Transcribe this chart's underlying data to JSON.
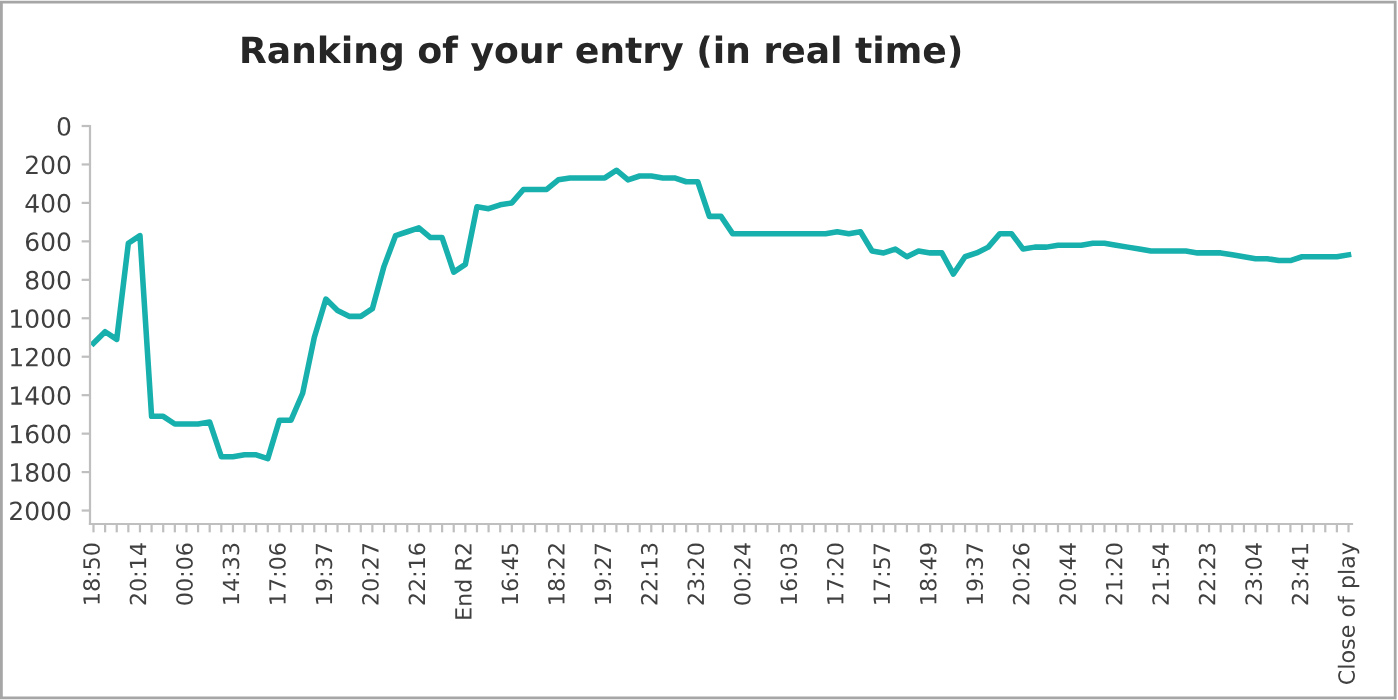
{
  "chart_data": {
    "type": "line",
    "title": "Ranking of your entry (in real time)",
    "categories": [
      "18:50",
      null,
      null,
      null,
      "20:14",
      null,
      null,
      null,
      "00:06",
      null,
      null,
      null,
      "14:33",
      null,
      null,
      null,
      "17:06",
      null,
      null,
      null,
      "19:37",
      null,
      null,
      null,
      "20:27",
      null,
      null,
      null,
      "22:16",
      null,
      null,
      null,
      "End R2",
      null,
      null,
      null,
      "16:45",
      null,
      null,
      null,
      "18:22",
      null,
      null,
      null,
      "19:27",
      null,
      null,
      null,
      "22:13",
      null,
      null,
      null,
      "23:20",
      null,
      null,
      null,
      "00:24",
      null,
      null,
      null,
      "16:03",
      null,
      null,
      null,
      "17:20",
      null,
      null,
      null,
      "17:57",
      null,
      null,
      null,
      "18:49",
      null,
      null,
      null,
      "19:37",
      null,
      null,
      null,
      "20:26",
      null,
      null,
      null,
      "20:44",
      null,
      null,
      null,
      "21:20",
      null,
      null,
      null,
      "21:54",
      null,
      null,
      null,
      "22:23",
      null,
      null,
      null,
      "23:04",
      null,
      null,
      null,
      "23:41",
      null,
      null,
      null,
      "Close of play"
    ],
    "series": [
      {
        "color": "#17b0ad",
        "values": [
          1130,
          1070,
          1110,
          610,
          570,
          1510,
          1510,
          1550,
          1550,
          1550,
          1540,
          1720,
          1720,
          1710,
          1710,
          1730,
          1530,
          1530,
          1390,
          1100,
          900,
          960,
          990,
          990,
          950,
          730,
          570,
          550,
          530,
          580,
          580,
          760,
          720,
          420,
          430,
          410,
          400,
          330,
          330,
          330,
          280,
          270,
          270,
          270,
          270,
          230,
          280,
          260,
          260,
          270,
          270,
          290,
          290,
          470,
          470,
          560,
          560,
          560,
          560,
          560,
          560,
          560,
          560,
          560,
          550,
          560,
          550,
          650,
          660,
          640,
          680,
          650,
          660,
          660,
          770,
          680,
          660,
          630,
          560,
          560,
          640,
          630,
          630,
          620,
          620,
          620,
          610,
          610,
          620,
          630,
          640,
          650,
          650,
          650,
          650,
          660,
          660,
          660,
          670,
          680,
          690,
          690,
          700,
          700,
          680,
          680,
          680,
          680,
          670
        ]
      }
    ],
    "ylim": [
      2070,
      0
    ],
    "yticks": [
      0,
      200,
      400,
      600,
      800,
      1000,
      1200,
      1400,
      1600,
      1800,
      2000
    ],
    "grid": false,
    "legend": false,
    "marker": "none",
    "line_style": "solid"
  }
}
